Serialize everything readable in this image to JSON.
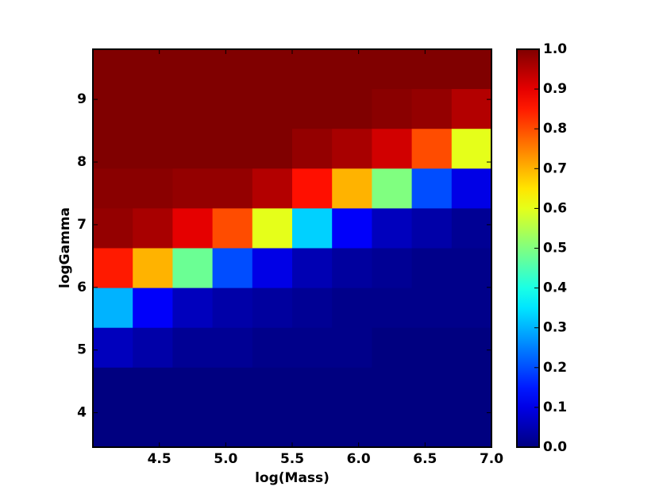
{
  "chart_data": {
    "type": "heatmap",
    "xlabel": "log(Mass)",
    "ylabel": "logGamma",
    "xlim": [
      4.0,
      7.0
    ],
    "ylim": [
      3.45,
      9.8
    ],
    "xticks": [
      {
        "value": 4.5,
        "label": "4.5"
      },
      {
        "value": 5.0,
        "label": "5.0"
      },
      {
        "value": 5.5,
        "label": "5.5"
      },
      {
        "value": 6.0,
        "label": "6.0"
      },
      {
        "value": 6.5,
        "label": "6.5"
      },
      {
        "value": 7.0,
        "label": "7.0"
      }
    ],
    "yticks": [
      4,
      5,
      6,
      7,
      8,
      9
    ],
    "colormap": "jet",
    "clim": [
      0,
      1
    ],
    "cticks": [
      {
        "value": 0,
        "label": "0.0"
      },
      {
        "value": 0.1,
        "label": "0.1"
      },
      {
        "value": 0.2,
        "label": "0.2"
      },
      {
        "value": 0.3,
        "label": "0.3"
      },
      {
        "value": 0.4,
        "label": "0.4"
      },
      {
        "value": 0.5,
        "label": "0.5"
      },
      {
        "value": 0.6,
        "label": "0.6"
      },
      {
        "value": 0.7,
        "label": "0.7"
      },
      {
        "value": 0.8,
        "label": "0.8"
      },
      {
        "value": 0.9,
        "label": "0.9"
      },
      {
        "value": 1.0,
        "label": "1.0"
      }
    ],
    "z": [
      [
        1,
        1,
        1,
        1,
        1,
        1,
        1,
        1,
        1,
        1
      ],
      [
        1,
        1,
        1,
        1,
        1,
        1,
        1,
        0.99,
        0.98,
        0.95
      ],
      [
        1,
        1,
        1,
        1,
        1,
        0.98,
        0.96,
        0.92,
        0.8,
        0.6
      ],
      [
        0.99,
        0.99,
        0.98,
        0.98,
        0.95,
        0.86,
        0.7,
        0.5,
        0.2,
        0.1
      ],
      [
        0.98,
        0.96,
        0.9,
        0.8,
        0.6,
        0.33,
        0.12,
        0.06,
        0.04,
        0.02
      ],
      [
        0.85,
        0.7,
        0.48,
        0.2,
        0.1,
        0.05,
        0.03,
        0.02,
        0.01,
        0.01
      ],
      [
        0.3,
        0.12,
        0.06,
        0.04,
        0.03,
        0.02,
        0.01,
        0.01,
        0.01,
        0.01
      ],
      [
        0.06,
        0.04,
        0.02,
        0.02,
        0.01,
        0.01,
        0.01,
        0,
        0,
        0
      ],
      [
        0,
        0,
        0,
        0,
        0,
        0,
        0,
        0,
        0,
        0
      ],
      [
        0,
        0,
        0,
        0,
        0,
        0,
        0,
        0,
        0,
        0
      ]
    ]
  }
}
